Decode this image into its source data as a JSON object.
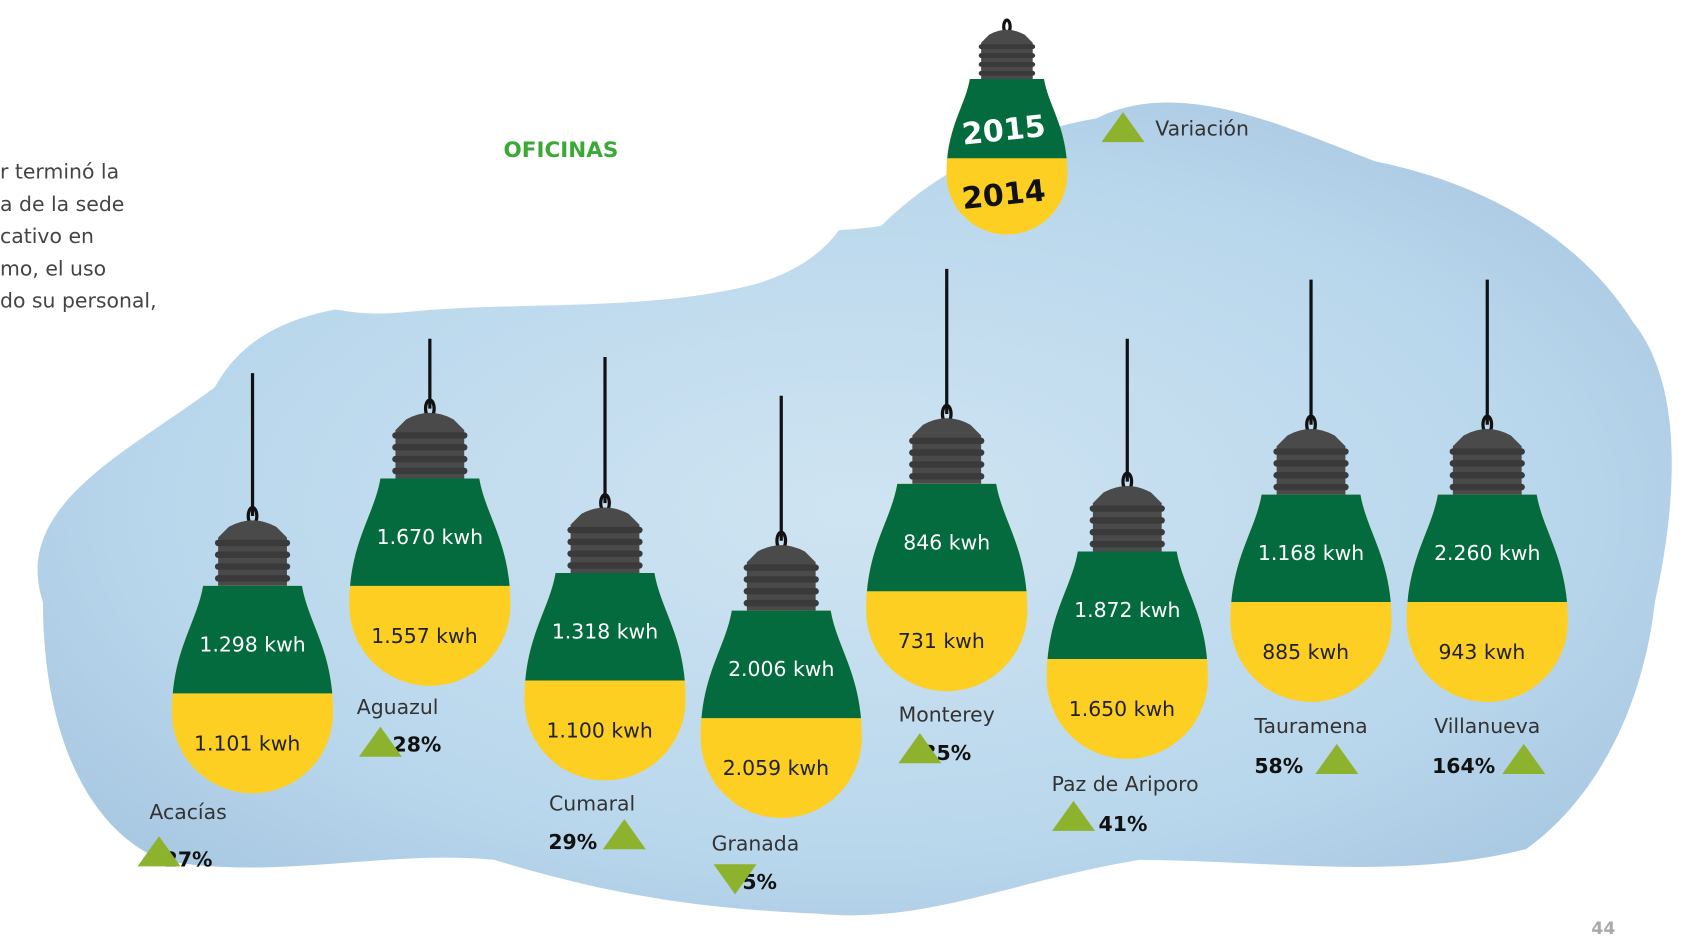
{
  "title": "OFICINAS",
  "intro_lines": [
    "r terminó la",
    "a de la sede",
    "cativo en",
    "mo, el uso",
    "do su personal,"
  ],
  "legend": {
    "top": "2015",
    "bottom": "2014",
    "variation": "Variación"
  },
  "offices": [
    {
      "name": "Acacías",
      "value_2015": "1.298 kwh",
      "value_2014": "1.101 kwh",
      "variation": "27%"
    },
    {
      "name": "Aguazul",
      "value_2015": "1.670 kwh",
      "value_2014": "1.557 kwh",
      "variation": "28%"
    },
    {
      "name": "Cumaral",
      "value_2015": "1.318 kwh",
      "value_2014": "1.100 kwh",
      "variation": "29%"
    },
    {
      "name": "Granada",
      "value_2015": "2.006 kwh",
      "value_2014": "2.059 kwh",
      "variation": "-5%"
    },
    {
      "name": "Monterey",
      "value_2015": "846 kwh",
      "value_2014": "731 kwh",
      "variation": "35%"
    },
    {
      "name": "Paz de Ariporo",
      "value_2015": "1.872 kwh",
      "value_2014": "1.650 kwh",
      "variation": "41%"
    },
    {
      "name": "Tauramena",
      "value_2015": "1.168 kwh",
      "value_2014": "885 kwh",
      "variation": "58%"
    },
    {
      "name": "Villanueva",
      "value_2015": "2.260 kwh",
      "value_2014": "943 kwh",
      "variation": "164%"
    }
  ],
  "page_number": "44"
}
